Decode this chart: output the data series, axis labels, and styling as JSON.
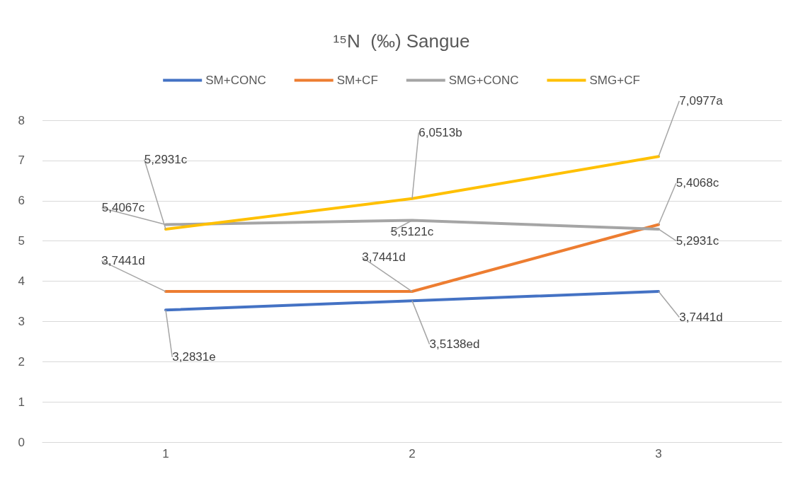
{
  "chart_data": {
    "type": "line",
    "title": "¹⁵N  (‰) Sangue",
    "categories": [
      "1",
      "2",
      "3"
    ],
    "series": [
      {
        "name": "SM+CONC",
        "color": "#4472c4",
        "values": [
          3.2831,
          3.5138,
          3.7441
        ],
        "value_labels": [
          "3,2831e",
          "3,5138ed",
          "3,7441d"
        ]
      },
      {
        "name": "SM+CF",
        "color": "#ed7d31",
        "values": [
          3.7441,
          3.7441,
          5.4068
        ],
        "value_labels": [
          "3,7441d",
          "3,7441d",
          "5,4068c"
        ]
      },
      {
        "name": "SMG+CONC",
        "color": "#a5a5a5",
        "values": [
          5.4067,
          5.5121,
          5.2931
        ],
        "value_labels": [
          "5,4067c",
          "5,5121c",
          "5,2931c"
        ]
      },
      {
        "name": "SMG+CF",
        "color": "#ffc000",
        "values": [
          5.2931,
          6.0513,
          7.0977
        ],
        "value_labels": [
          "5,2931c",
          "6,0513b",
          "7,0977a"
        ]
      }
    ],
    "ylim": [
      0,
      8
    ],
    "yticks": [
      0,
      1,
      2,
      3,
      4,
      5,
      6,
      7,
      8
    ],
    "grid": "y",
    "legend": "top",
    "marker": "none",
    "line_style": "solid"
  }
}
